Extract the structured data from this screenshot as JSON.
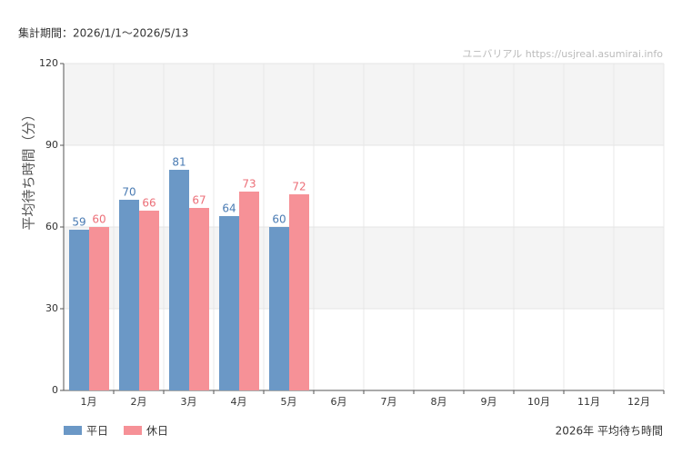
{
  "chart_data": {
    "type": "bar",
    "period": "集計期間：2026/1/1～2026/5/13",
    "watermark": "ユニバリアル  https://usjreal.asumirai.info",
    "y_label": "平均待ち時間（分）",
    "caption": "2026年 平均待ち時間",
    "categories": [
      "1月",
      "2月",
      "3月",
      "4月",
      "5月",
      "6月",
      "7月",
      "8月",
      "9月",
      "10月",
      "11月",
      "12月"
    ],
    "series": [
      {
        "name": "平日",
        "color": "#6b98c6",
        "label_color": "#4a7bb3",
        "values": [
          59,
          70,
          81,
          64,
          60,
          null,
          null,
          null,
          null,
          null,
          null,
          null
        ]
      },
      {
        "name": "休日",
        "color": "#f69197",
        "label_color": "#ec6f78",
        "values": [
          60,
          66,
          67,
          73,
          72,
          null,
          null,
          null,
          null,
          null,
          null,
          null
        ]
      }
    ],
    "ylim": [
      0,
      120
    ],
    "yticks": [
      0,
      30,
      60,
      90,
      120
    ],
    "grid": true,
    "legend": "bottom-left"
  }
}
